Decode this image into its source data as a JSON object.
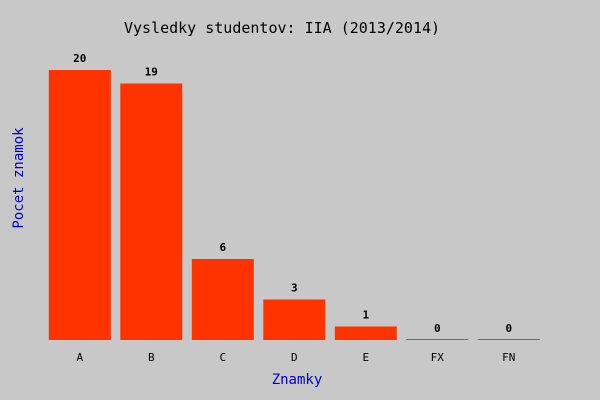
{
  "chart_data": {
    "type": "bar",
    "title": "Vysledky studentov: IIA (2013/2014)",
    "xlabel": "Znamky",
    "ylabel": "Pocet znamok",
    "categories": [
      "A",
      "B",
      "C",
      "D",
      "E",
      "FX",
      "FN"
    ],
    "values": [
      20,
      19,
      6,
      3,
      1,
      0,
      0
    ],
    "ylim": [
      0,
      20
    ],
    "grid": false,
    "legend": "none",
    "colors": {
      "bar": "#ff3300",
      "background": "#c8c8c8",
      "axis_label": "#0000cc",
      "text": "#000000"
    }
  }
}
